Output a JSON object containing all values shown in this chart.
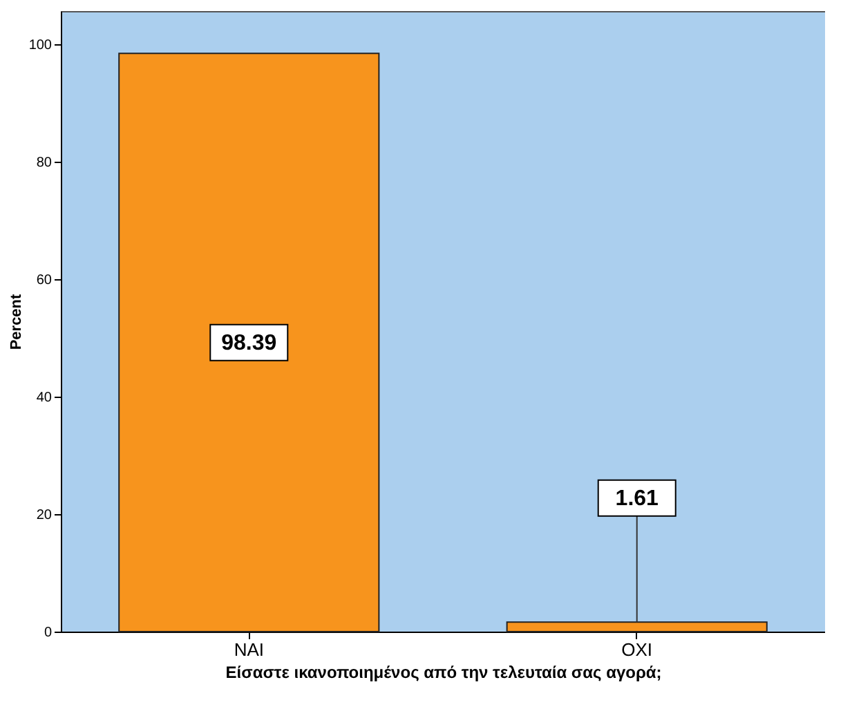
{
  "chart_data": {
    "type": "bar",
    "categories": [
      "ΝΑΙ",
      "ΟΧΙ"
    ],
    "values": [
      98.39,
      1.61
    ],
    "color": "#f7941d",
    "xlabel": "Είσαστε ικανοποιημένος από την τελευταία σας αγορά;",
    "ylabel": "Percent",
    "ylim": [
      0,
      105.6
    ],
    "yticks": [
      0,
      20,
      40,
      60,
      80,
      100
    ],
    "value_labels": [
      "98.39",
      "1.61"
    ],
    "grid": false
  }
}
